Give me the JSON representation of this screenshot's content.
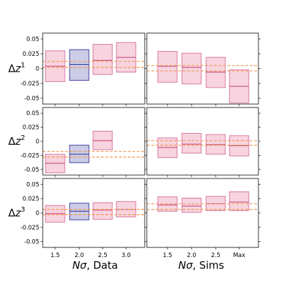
{
  "chart_data": {
    "type": "box-grid",
    "colors": {
      "box_fill_default": "#f7d4e0",
      "box_edge_default": "#d36b95",
      "median_default": "#c0386d",
      "box_fill_highlight": "#cccce6",
      "box_edge_highlight": "#2c2c99",
      "median_highlight": "#2c2c99",
      "ref_line": "#f0954a"
    },
    "ylim": [
      -0.06,
      0.06
    ],
    "yticks": [
      "0.05",
      "0.025",
      "0",
      "-0.025",
      "-0.05"
    ],
    "ytick_values": [
      0.05,
      0.025,
      0,
      -0.025,
      -0.05
    ],
    "row_labels": [
      {
        "base": "Δ",
        "var": "z",
        "sup": "1"
      },
      {
        "base": "Δ",
        "var": "z",
        "sup": "2"
      },
      {
        "base": "Δ",
        "var": "z",
        "sup": "3"
      }
    ],
    "column_xlabels": [
      {
        "italic": "Nσ",
        "rest": ", Data"
      },
      {
        "italic": "Nσ",
        "rest": ", Sims"
      }
    ],
    "columns": [
      {
        "categories": [
          "1.5",
          "2.0",
          "2.5",
          "3.0"
        ]
      },
      {
        "categories": [
          "1.5",
          "2.0",
          "2.5",
          "Max"
        ]
      }
    ],
    "panels": [
      {
        "row": 0,
        "col": 0,
        "ref_lines": [
          0.012,
          0.002
        ],
        "boxes": [
          {
            "cat": "1.5",
            "q1": -0.022,
            "med": 0.004,
            "q3": 0.03,
            "highlight": false
          },
          {
            "cat": "2.0",
            "q1": -0.02,
            "med": 0.007,
            "q3": 0.032,
            "highlight": true
          },
          {
            "cat": "2.5",
            "q1": -0.01,
            "med": 0.014,
            "q3": 0.041,
            "highlight": false
          },
          {
            "cat": "3.0",
            "q1": -0.006,
            "med": 0.019,
            "q3": 0.044,
            "highlight": false
          }
        ]
      },
      {
        "row": 0,
        "col": 1,
        "ref_lines": [
          0.005,
          -0.004
        ],
        "boxes": [
          {
            "cat": "1.5",
            "q1": -0.023,
            "med": 0.004,
            "q3": 0.029,
            "highlight": false
          },
          {
            "cat": "2.0",
            "q1": -0.026,
            "med": 0.002,
            "q3": 0.026,
            "highlight": false
          },
          {
            "cat": "2.5",
            "q1": -0.032,
            "med": -0.006,
            "q3": 0.019,
            "highlight": false
          },
          {
            "cat": "Max",
            "q1": -0.058,
            "med": -0.03,
            "q3": -0.002,
            "highlight": false
          }
        ]
      },
      {
        "row": 1,
        "col": 0,
        "ref_lines": [
          -0.018,
          -0.028
        ],
        "boxes": [
          {
            "cat": "1.5",
            "q1": -0.056,
            "med": -0.039,
            "q3": -0.023,
            "highlight": false
          },
          {
            "cat": "2.0",
            "q1": -0.038,
            "med": -0.023,
            "q3": -0.007,
            "highlight": true
          },
          {
            "cat": "2.5",
            "q1": -0.015,
            "med": 0.001,
            "q3": 0.018,
            "highlight": false
          }
        ]
      },
      {
        "row": 1,
        "col": 1,
        "ref_lines": [
          0.001,
          -0.007
        ],
        "boxes": [
          {
            "cat": "1.5",
            "q1": -0.029,
            "med": -0.011,
            "q3": 0.006,
            "highlight": false
          },
          {
            "cat": "2.0",
            "q1": -0.021,
            "med": -0.005,
            "q3": 0.014,
            "highlight": false
          },
          {
            "cat": "2.5",
            "q1": -0.023,
            "med": -0.006,
            "q3": 0.012,
            "highlight": false
          },
          {
            "cat": "Max",
            "q1": -0.026,
            "med": -0.008,
            "q3": 0.01,
            "highlight": false
          }
        ]
      },
      {
        "row": 2,
        "col": 0,
        "ref_lines": [
          0.006,
          -0.003
        ],
        "boxes": [
          {
            "cat": "1.5",
            "q1": -0.016,
            "med": -0.001,
            "q3": 0.013,
            "highlight": false
          },
          {
            "cat": "2.0",
            "q1": -0.012,
            "med": 0.003,
            "q3": 0.017,
            "highlight": true
          },
          {
            "cat": "2.5",
            "q1": -0.011,
            "med": 0.005,
            "q3": 0.018,
            "highlight": false
          },
          {
            "cat": "3.0",
            "q1": -0.007,
            "med": 0.006,
            "q3": 0.02,
            "highlight": false
          }
        ]
      },
      {
        "row": 2,
        "col": 1,
        "ref_lines": [
          0.016,
          0.006
        ],
        "boxes": [
          {
            "cat": "1.5",
            "q1": 0.003,
            "med": 0.014,
            "q3": 0.028,
            "highlight": false
          },
          {
            "cat": "2.0",
            "q1": 0.001,
            "med": 0.012,
            "q3": 0.026,
            "highlight": false
          },
          {
            "cat": "2.5",
            "q1": 0.004,
            "med": 0.016,
            "q3": 0.029,
            "highlight": false
          },
          {
            "cat": "Max",
            "q1": 0.004,
            "med": 0.019,
            "q3": 0.037,
            "highlight": false
          }
        ]
      }
    ]
  }
}
